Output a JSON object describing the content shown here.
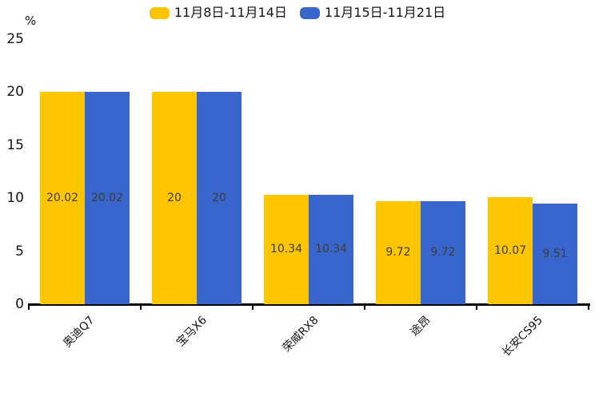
{
  "chart_data": {
    "type": "bar",
    "title": "",
    "categories": [
      "奥迪Q7",
      "宝马X6",
      "荣威RX8",
      "途昂",
      "长安CS95"
    ],
    "series": [
      {
        "name": "11月8日-11月14日",
        "color": "#FCC500",
        "values": [
          20.02,
          20,
          10.34,
          9.72,
          10.07
        ]
      },
      {
        "name": "11月15日-11月21日",
        "color": "#3866CD",
        "values": [
          20.02,
          20,
          10.34,
          9.72,
          9.51
        ]
      }
    ],
    "xlabel": "",
    "ylabel": "%",
    "ylim": [
      0,
      25
    ],
    "yticks": [
      0,
      5,
      10,
      15,
      20,
      25
    ],
    "grid": false,
    "legend_position": "top-center",
    "value_label_position": "inside-center",
    "axis_color": "#000000",
    "value_label_color": "#3d3d3d"
  }
}
